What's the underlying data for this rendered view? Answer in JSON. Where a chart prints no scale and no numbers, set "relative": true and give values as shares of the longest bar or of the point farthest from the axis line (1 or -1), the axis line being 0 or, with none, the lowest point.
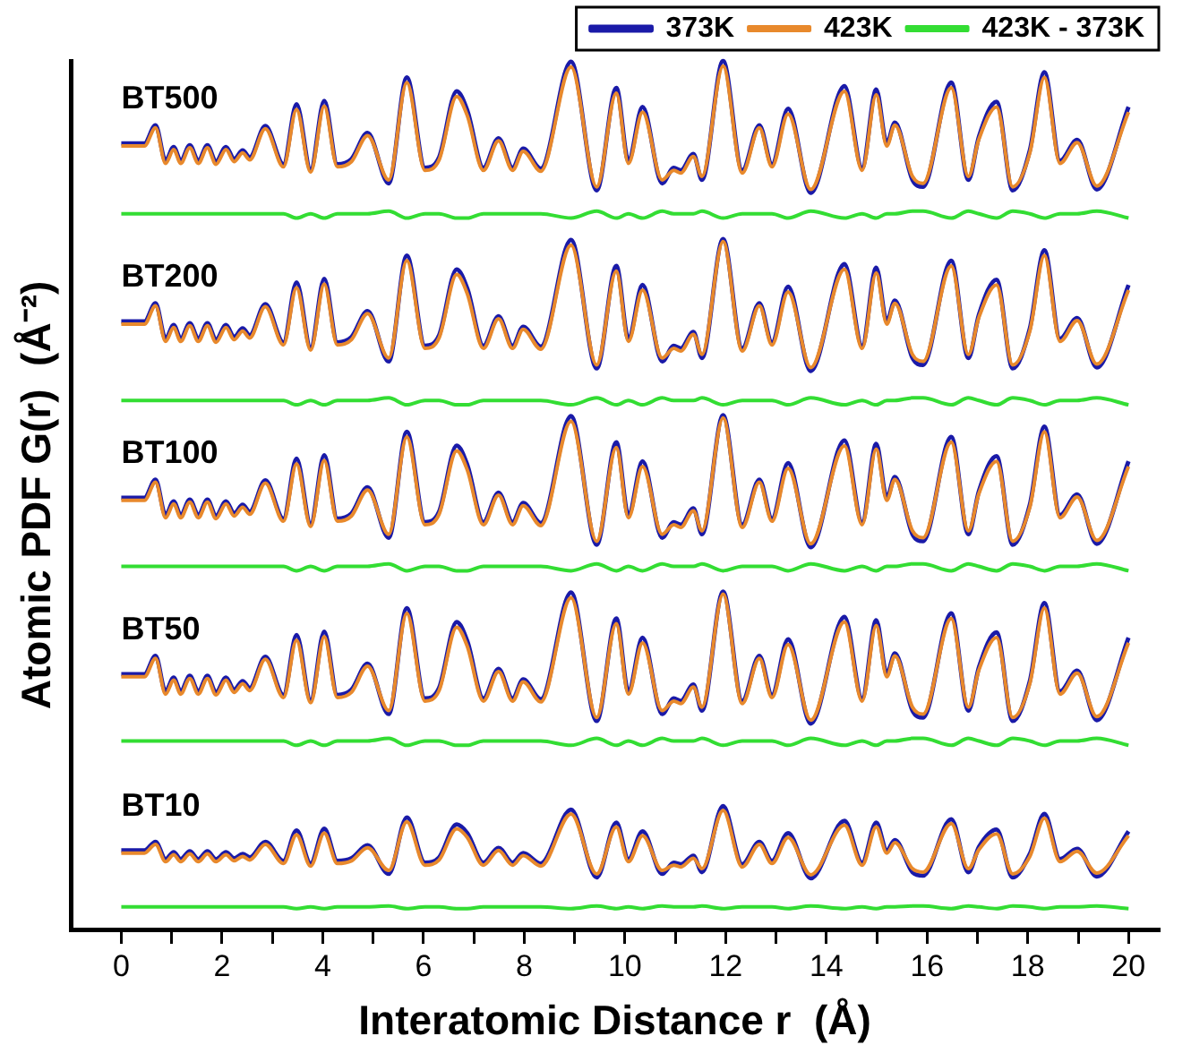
{
  "chart_data": {
    "type": "line",
    "relative": true,
    "xlabel": "Interatomic Distance r  (Å)",
    "ylabel": "Atomic PDF G(r)  (Å⁻²)",
    "xlim": [
      -1,
      20.6
    ],
    "xticks": [
      0,
      {
        "value": 1,
        "label": null
      },
      2,
      {
        "value": 3,
        "label": null
      },
      4,
      {
        "value": 5,
        "label": null
      },
      6,
      {
        "value": 7,
        "label": null
      },
      8,
      {
        "value": 9,
        "label": null
      },
      10,
      {
        "value": 11,
        "label": null
      },
      12,
      {
        "value": 13,
        "label": null
      },
      14,
      {
        "value": 15,
        "label": null
      },
      16,
      {
        "value": 17,
        "label": null
      },
      18,
      {
        "value": 19,
        "label": null
      },
      20
    ],
    "legend": "top right",
    "grid": false,
    "marker": "none",
    "line_style": "solid",
    "annotations": [
      "BT500",
      "BT200",
      "BT100",
      "BT50",
      "BT10"
    ],
    "x": [
      0,
      0.46,
      0.68,
      0.88,
      1.04,
      1.18,
      1.36,
      1.53,
      1.71,
      1.88,
      2.08,
      2.24,
      2.41,
      2.55,
      2.86,
      3.22,
      3.48,
      3.76,
      4.03,
      4.29,
      4.57,
      4.89,
      5.31,
      5.67,
      6.03,
      6.31,
      6.66,
      6.87,
      7.19,
      7.49,
      7.77,
      7.98,
      8.33,
      8.93,
      9.44,
      9.83,
      10.07,
      10.35,
      10.74,
      10.97,
      11.11,
      11.36,
      11.53,
      11.95,
      12.33,
      12.67,
      12.92,
      13.24,
      13.69,
      14.36,
      14.71,
      14.99,
      15.2,
      15.36,
      15.71,
      15.92,
      16.48,
      16.82,
      17.03,
      17.38,
      17.7,
      18.04,
      18.33,
      18.64,
      18.98,
      19.37,
      20
    ],
    "series": [
      {
        "name": "373K",
        "color": "#1a1aa8",
        "values": [
          0.905,
          0.905,
          0.926,
          0.885,
          0.901,
          0.885,
          0.903,
          0.885,
          0.903,
          0.884,
          0.901,
          0.887,
          0.897,
          0.889,
          0.925,
          0.881,
          0.95,
          0.875,
          0.954,
          0.881,
          0.887,
          0.917,
          0.859,
          0.981,
          0.877,
          0.889,
          0.965,
          0.943,
          0.877,
          0.911,
          0.877,
          0.899,
          0.876,
          0.999,
          0.851,
          0.969,
          0.885,
          0.947,
          0.859,
          0.877,
          0.874,
          0.893,
          0.863,
          1.0,
          0.874,
          0.926,
          0.881,
          0.945,
          0.848,
          0.971,
          0.877,
          0.967,
          0.905,
          0.929,
          0.863,
          0.855,
          0.975,
          0.863,
          0.913,
          0.953,
          0.851,
          0.897,
          0.987,
          0.885,
          0.909,
          0.852,
          0.947
        ]
      },
      {
        "name": "423K",
        "color": "#e8892c",
        "values": [
          0.902,
          0.902,
          0.923,
          0.882,
          0.898,
          0.882,
          0.9,
          0.882,
          0.9,
          0.881,
          0.898,
          0.884,
          0.894,
          0.886,
          0.922,
          0.878,
          0.944,
          0.872,
          0.948,
          0.878,
          0.884,
          0.914,
          0.863,
          0.975,
          0.874,
          0.886,
          0.959,
          0.937,
          0.874,
          0.908,
          0.874,
          0.896,
          0.873,
          0.993,
          0.855,
          0.963,
          0.882,
          0.941,
          0.863,
          0.874,
          0.871,
          0.89,
          0.867,
          0.994,
          0.871,
          0.923,
          0.878,
          0.939,
          0.852,
          0.965,
          0.874,
          0.961,
          0.902,
          0.926,
          0.867,
          0.859,
          0.969,
          0.867,
          0.91,
          0.947,
          0.855,
          0.894,
          0.981,
          0.882,
          0.906,
          0.856,
          0.941
        ]
      },
      {
        "name": "423K - 373K",
        "color": "#33dd33",
        "values": [
          0.824,
          0.824,
          0.824,
          0.824,
          0.824,
          0.824,
          0.824,
          0.824,
          0.824,
          0.824,
          0.824,
          0.824,
          0.824,
          0.824,
          0.824,
          0.824,
          0.819,
          0.824,
          0.819,
          0.824,
          0.824,
          0.824,
          0.827,
          0.819,
          0.824,
          0.824,
          0.819,
          0.819,
          0.824,
          0.824,
          0.824,
          0.824,
          0.824,
          0.819,
          0.827,
          0.819,
          0.824,
          0.819,
          0.827,
          0.824,
          0.824,
          0.824,
          0.827,
          0.819,
          0.824,
          0.824,
          0.824,
          0.819,
          0.827,
          0.819,
          0.824,
          0.819,
          0.824,
          0.824,
          0.827,
          0.827,
          0.819,
          0.827,
          0.824,
          0.819,
          0.827,
          0.824,
          0.819,
          0.824,
          0.824,
          0.827,
          0.819
        ]
      },
      {
        "color": "#1a1aa8",
        "values": [
          0.7,
          0.7,
          0.721,
          0.68,
          0.696,
          0.68,
          0.698,
          0.68,
          0.698,
          0.679,
          0.696,
          0.682,
          0.692,
          0.684,
          0.72,
          0.676,
          0.745,
          0.67,
          0.749,
          0.676,
          0.682,
          0.712,
          0.654,
          0.776,
          0.672,
          0.684,
          0.76,
          0.738,
          0.672,
          0.706,
          0.672,
          0.694,
          0.671,
          0.794,
          0.646,
          0.764,
          0.68,
          0.742,
          0.654,
          0.672,
          0.669,
          0.688,
          0.658,
          0.795,
          0.669,
          0.721,
          0.676,
          0.74,
          0.643,
          0.766,
          0.672,
          0.762,
          0.7,
          0.724,
          0.658,
          0.65,
          0.77,
          0.658,
          0.708,
          0.748,
          0.646,
          0.692,
          0.782,
          0.68,
          0.704,
          0.647,
          0.742
        ]
      },
      {
        "color": "#e8892c",
        "values": [
          0.697,
          0.697,
          0.718,
          0.677,
          0.693,
          0.677,
          0.695,
          0.677,
          0.695,
          0.676,
          0.693,
          0.679,
          0.689,
          0.681,
          0.717,
          0.673,
          0.739,
          0.667,
          0.743,
          0.673,
          0.679,
          0.709,
          0.658,
          0.77,
          0.669,
          0.681,
          0.754,
          0.732,
          0.669,
          0.703,
          0.669,
          0.691,
          0.668,
          0.788,
          0.65,
          0.758,
          0.677,
          0.736,
          0.658,
          0.669,
          0.666,
          0.685,
          0.662,
          0.792,
          0.666,
          0.718,
          0.673,
          0.734,
          0.647,
          0.76,
          0.669,
          0.756,
          0.697,
          0.721,
          0.662,
          0.654,
          0.764,
          0.662,
          0.705,
          0.742,
          0.65,
          0.689,
          0.776,
          0.677,
          0.701,
          0.651,
          0.736
        ]
      },
      {
        "color": "#33dd33",
        "values": [
          0.609,
          0.609,
          0.609,
          0.609,
          0.609,
          0.609,
          0.609,
          0.609,
          0.609,
          0.609,
          0.609,
          0.609,
          0.609,
          0.609,
          0.609,
          0.609,
          0.604,
          0.609,
          0.604,
          0.609,
          0.609,
          0.609,
          0.612,
          0.604,
          0.609,
          0.609,
          0.604,
          0.604,
          0.609,
          0.609,
          0.609,
          0.609,
          0.609,
          0.604,
          0.612,
          0.604,
          0.609,
          0.604,
          0.612,
          0.609,
          0.609,
          0.609,
          0.612,
          0.604,
          0.609,
          0.609,
          0.609,
          0.604,
          0.612,
          0.604,
          0.609,
          0.604,
          0.609,
          0.609,
          0.612,
          0.612,
          0.604,
          0.612,
          0.609,
          0.604,
          0.612,
          0.609,
          0.604,
          0.609,
          0.609,
          0.612,
          0.604
        ]
      },
      {
        "color": "#1a1aa8",
        "values": [
          0.497,
          0.497,
          0.518,
          0.477,
          0.493,
          0.477,
          0.495,
          0.477,
          0.495,
          0.476,
          0.493,
          0.479,
          0.489,
          0.481,
          0.517,
          0.473,
          0.542,
          0.467,
          0.546,
          0.473,
          0.479,
          0.509,
          0.451,
          0.573,
          0.469,
          0.481,
          0.557,
          0.535,
          0.469,
          0.503,
          0.469,
          0.491,
          0.468,
          0.591,
          0.443,
          0.561,
          0.477,
          0.539,
          0.451,
          0.469,
          0.466,
          0.485,
          0.455,
          0.592,
          0.466,
          0.518,
          0.473,
          0.537,
          0.44,
          0.563,
          0.469,
          0.559,
          0.497,
          0.521,
          0.455,
          0.447,
          0.567,
          0.455,
          0.505,
          0.545,
          0.443,
          0.489,
          0.579,
          0.477,
          0.501,
          0.444,
          0.539
        ]
      },
      {
        "color": "#e8892c",
        "values": [
          0.494,
          0.494,
          0.515,
          0.474,
          0.49,
          0.474,
          0.492,
          0.474,
          0.492,
          0.473,
          0.49,
          0.476,
          0.486,
          0.478,
          0.514,
          0.47,
          0.536,
          0.464,
          0.54,
          0.47,
          0.476,
          0.506,
          0.455,
          0.567,
          0.466,
          0.478,
          0.551,
          0.529,
          0.466,
          0.5,
          0.466,
          0.488,
          0.465,
          0.585,
          0.447,
          0.555,
          0.474,
          0.533,
          0.455,
          0.466,
          0.463,
          0.482,
          0.459,
          0.589,
          0.463,
          0.515,
          0.47,
          0.531,
          0.444,
          0.557,
          0.466,
          0.553,
          0.494,
          0.518,
          0.459,
          0.451,
          0.561,
          0.459,
          0.502,
          0.539,
          0.447,
          0.486,
          0.573,
          0.474,
          0.498,
          0.448,
          0.533
        ]
      },
      {
        "color": "#33dd33",
        "values": [
          0.418,
          0.418,
          0.418,
          0.418,
          0.418,
          0.418,
          0.418,
          0.418,
          0.418,
          0.418,
          0.418,
          0.418,
          0.418,
          0.418,
          0.418,
          0.418,
          0.413,
          0.418,
          0.413,
          0.418,
          0.418,
          0.418,
          0.421,
          0.413,
          0.418,
          0.418,
          0.413,
          0.413,
          0.418,
          0.418,
          0.418,
          0.418,
          0.418,
          0.413,
          0.421,
          0.413,
          0.418,
          0.413,
          0.421,
          0.418,
          0.418,
          0.418,
          0.421,
          0.413,
          0.418,
          0.418,
          0.418,
          0.413,
          0.421,
          0.413,
          0.418,
          0.413,
          0.418,
          0.418,
          0.421,
          0.421,
          0.413,
          0.421,
          0.418,
          0.413,
          0.421,
          0.418,
          0.413,
          0.418,
          0.418,
          0.421,
          0.413
        ]
      },
      {
        "color": "#1a1aa8",
        "values": [
          0.294,
          0.294,
          0.315,
          0.274,
          0.29,
          0.274,
          0.292,
          0.274,
          0.292,
          0.273,
          0.29,
          0.276,
          0.286,
          0.278,
          0.314,
          0.27,
          0.339,
          0.264,
          0.343,
          0.27,
          0.276,
          0.306,
          0.248,
          0.37,
          0.266,
          0.278,
          0.354,
          0.332,
          0.266,
          0.3,
          0.266,
          0.288,
          0.265,
          0.388,
          0.24,
          0.358,
          0.274,
          0.336,
          0.248,
          0.266,
          0.263,
          0.282,
          0.252,
          0.389,
          0.263,
          0.315,
          0.27,
          0.334,
          0.237,
          0.36,
          0.266,
          0.356,
          0.294,
          0.318,
          0.252,
          0.244,
          0.364,
          0.252,
          0.302,
          0.342,
          0.24,
          0.286,
          0.376,
          0.274,
          0.298,
          0.241,
          0.336
        ]
      },
      {
        "color": "#e8892c",
        "values": [
          0.291,
          0.291,
          0.312,
          0.271,
          0.287,
          0.271,
          0.289,
          0.271,
          0.289,
          0.27,
          0.287,
          0.273,
          0.283,
          0.275,
          0.311,
          0.267,
          0.333,
          0.261,
          0.337,
          0.267,
          0.273,
          0.303,
          0.252,
          0.364,
          0.263,
          0.275,
          0.348,
          0.326,
          0.263,
          0.297,
          0.263,
          0.285,
          0.262,
          0.382,
          0.244,
          0.352,
          0.271,
          0.33,
          0.252,
          0.263,
          0.26,
          0.279,
          0.256,
          0.386,
          0.26,
          0.312,
          0.267,
          0.328,
          0.241,
          0.354,
          0.263,
          0.35,
          0.291,
          0.315,
          0.256,
          0.248,
          0.358,
          0.256,
          0.299,
          0.336,
          0.244,
          0.283,
          0.37,
          0.271,
          0.295,
          0.245,
          0.33
        ]
      },
      {
        "color": "#33dd33",
        "values": [
          0.217,
          0.217,
          0.217,
          0.217,
          0.217,
          0.217,
          0.217,
          0.217,
          0.217,
          0.217,
          0.217,
          0.217,
          0.217,
          0.217,
          0.217,
          0.217,
          0.212,
          0.217,
          0.212,
          0.217,
          0.217,
          0.217,
          0.22,
          0.212,
          0.217,
          0.217,
          0.212,
          0.212,
          0.217,
          0.217,
          0.217,
          0.217,
          0.217,
          0.212,
          0.22,
          0.212,
          0.217,
          0.212,
          0.22,
          0.217,
          0.217,
          0.217,
          0.22,
          0.212,
          0.217,
          0.217,
          0.217,
          0.212,
          0.22,
          0.212,
          0.217,
          0.212,
          0.217,
          0.217,
          0.22,
          0.22,
          0.212,
          0.22,
          0.217,
          0.212,
          0.22,
          0.217,
          0.212,
          0.217,
          0.217,
          0.22,
          0.212
        ]
      },
      {
        "color": "#1a1aa8",
        "values": [
          0.091,
          0.091,
          0.101,
          0.081,
          0.089,
          0.081,
          0.09,
          0.081,
          0.09,
          0.081,
          0.089,
          0.082,
          0.087,
          0.083,
          0.101,
          0.079,
          0.114,
          0.076,
          0.116,
          0.079,
          0.082,
          0.097,
          0.064,
          0.129,
          0.077,
          0.083,
          0.121,
          0.111,
          0.077,
          0.094,
          0.077,
          0.088,
          0.076,
          0.138,
          0.06,
          0.123,
          0.081,
          0.113,
          0.064,
          0.077,
          0.075,
          0.085,
          0.066,
          0.142,
          0.075,
          0.101,
          0.079,
          0.111,
          0.059,
          0.125,
          0.077,
          0.123,
          0.091,
          0.103,
          0.066,
          0.062,
          0.127,
          0.066,
          0.095,
          0.115,
          0.06,
          0.087,
          0.133,
          0.081,
          0.093,
          0.061,
          0.113
        ]
      },
      {
        "color": "#e8892c",
        "values": [
          0.088,
          0.088,
          0.098,
          0.078,
          0.086,
          0.078,
          0.087,
          0.078,
          0.087,
          0.078,
          0.086,
          0.079,
          0.084,
          0.08,
          0.098,
          0.076,
          0.109,
          0.073,
          0.111,
          0.076,
          0.079,
          0.094,
          0.068,
          0.124,
          0.074,
          0.08,
          0.116,
          0.106,
          0.074,
          0.091,
          0.074,
          0.085,
          0.073,
          0.133,
          0.064,
          0.118,
          0.078,
          0.108,
          0.068,
          0.074,
          0.072,
          0.082,
          0.07,
          0.137,
          0.072,
          0.098,
          0.076,
          0.106,
          0.063,
          0.12,
          0.074,
          0.118,
          0.088,
          0.1,
          0.07,
          0.066,
          0.122,
          0.07,
          0.092,
          0.11,
          0.064,
          0.084,
          0.128,
          0.078,
          0.09,
          0.065,
          0.108
        ]
      },
      {
        "color": "#33dd33",
        "values": [
          0.026,
          0.026,
          0.026,
          0.026,
          0.026,
          0.026,
          0.026,
          0.026,
          0.026,
          0.026,
          0.026,
          0.026,
          0.026,
          0.026,
          0.026,
          0.026,
          0.024,
          0.026,
          0.024,
          0.026,
          0.026,
          0.026,
          0.027,
          0.024,
          0.026,
          0.026,
          0.024,
          0.024,
          0.026,
          0.026,
          0.026,
          0.026,
          0.026,
          0.024,
          0.027,
          0.024,
          0.026,
          0.024,
          0.027,
          0.026,
          0.026,
          0.026,
          0.027,
          0.024,
          0.026,
          0.026,
          0.026,
          0.024,
          0.027,
          0.024,
          0.026,
          0.024,
          0.026,
          0.026,
          0.027,
          0.027,
          0.024,
          0.027,
          0.026,
          0.024,
          0.027,
          0.026,
          0.024,
          0.026,
          0.026,
          0.027,
          0.024
        ]
      }
    ]
  }
}
